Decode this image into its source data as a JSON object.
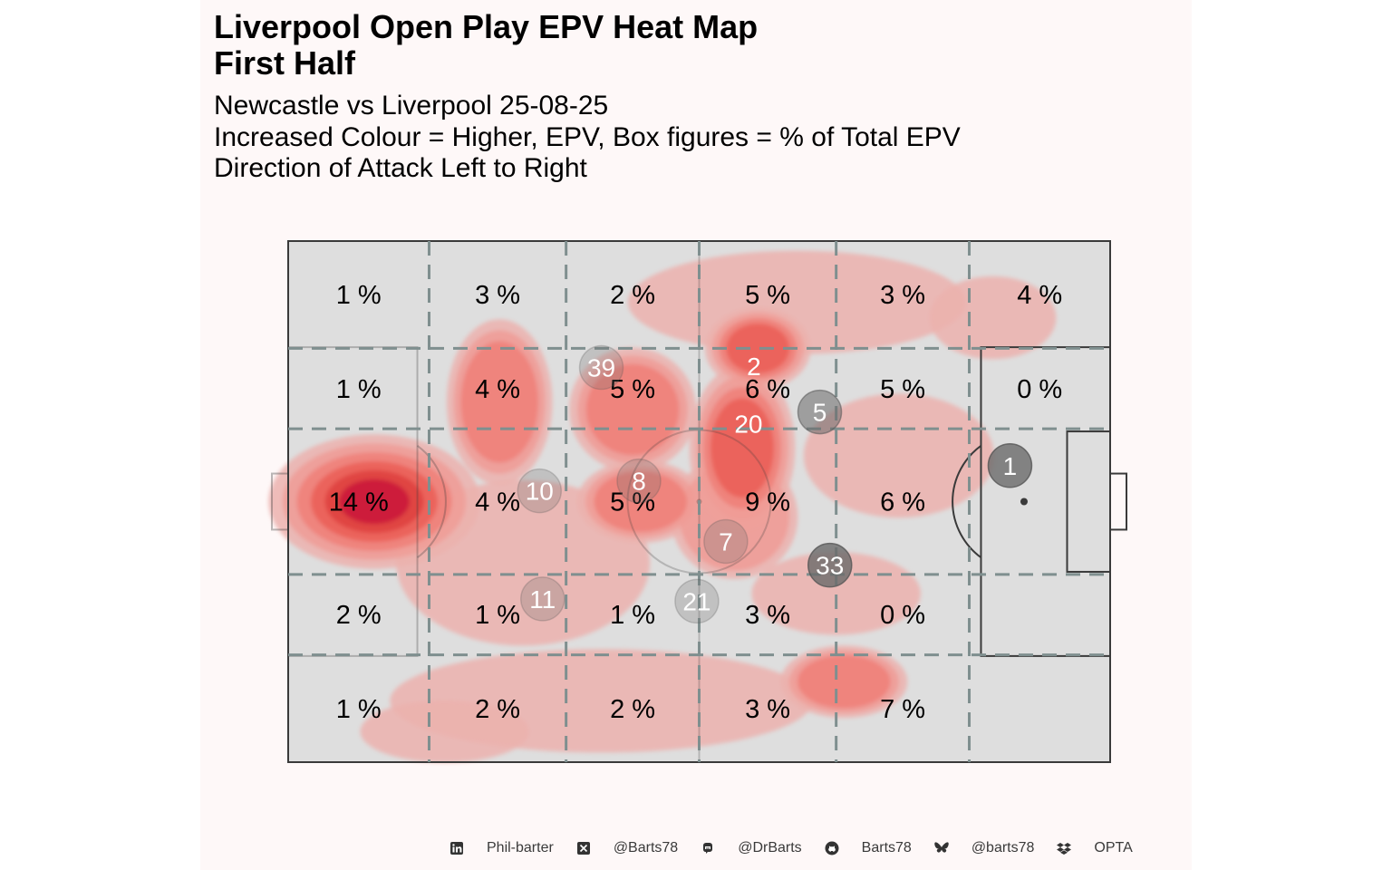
{
  "header": {
    "title_line1": "Liverpool  Open Play EPV Heat Map",
    "title_line2": "First Half",
    "subtitle_line1": "Newcastle vs Liverpool 25-08-25",
    "subtitle_line2": "Increased Colour = Higher, EPV, Box figures = % of Total EPV",
    "subtitle_line3": "Direction of Attack Left to Right"
  },
  "colors": {
    "panel_background": "#fef8f8",
    "pitch_fill": "#dedede",
    "pitch_lines": "#3a3a3a",
    "grid_lines": "#7f8f8f",
    "heat_scale": [
      "#ecb1ae",
      "#f09b95",
      "#ef7d76",
      "#ea5b54",
      "#dd3c3c",
      "#c8143a"
    ],
    "player_marker": "#6a6a6a"
  },
  "chart_data": {
    "type": "heatmap",
    "direction_of_attack": "left-to-right",
    "pitch": {
      "length": 105,
      "width": 68
    },
    "zone_x_edges": [
      0,
      18,
      35.5,
      52.5,
      70,
      87,
      105
    ],
    "zone_y_edges": [
      0,
      14,
      24.5,
      43.5,
      54,
      68
    ],
    "zone_labels": [
      [
        "1 %",
        "3 %",
        "2 %",
        "5 %",
        "3 %",
        "4 %"
      ],
      [
        "1 %",
        "4 %",
        "5 %",
        "6 %",
        "5 %",
        "0 %"
      ],
      [
        "14 %",
        "4 %",
        "5 %",
        "9 %",
        "6 %",
        ""
      ],
      [
        "2 %",
        "1 %",
        "1 %",
        "3 %",
        "0 %",
        ""
      ],
      [
        "1 %",
        "2 %",
        "2 %",
        "3 %",
        "7 %",
        ""
      ]
    ],
    "heat_blobs": [
      {
        "x": 11,
        "y": 34,
        "sx": 10,
        "sy": 6.5,
        "level": 6
      },
      {
        "x": 27,
        "y": 21,
        "sx": 5,
        "sy": 8,
        "level": 3
      },
      {
        "x": 44,
        "y": 22,
        "sx": 6,
        "sy": 6,
        "level": 3
      },
      {
        "x": 45,
        "y": 34,
        "sx": 6,
        "sy": 4,
        "level": 3
      },
      {
        "x": 58,
        "y": 27,
        "sx": 5,
        "sy": 8,
        "level": 4
      },
      {
        "x": 60,
        "y": 14,
        "sx": 5,
        "sy": 4,
        "level": 4
      },
      {
        "x": 57,
        "y": 36,
        "sx": 6,
        "sy": 6,
        "level": 2
      },
      {
        "x": 71,
        "y": 57.5,
        "sx": 6,
        "sy": 3.5,
        "level": 3
      },
      {
        "x": 30,
        "y": 42,
        "sx": 12,
        "sy": 8,
        "level": 1
      },
      {
        "x": 40,
        "y": 60,
        "sx": 20,
        "sy": 5,
        "level": 1
      },
      {
        "x": 20,
        "y": 64,
        "sx": 8,
        "sy": 3,
        "level": 1
      },
      {
        "x": 65,
        "y": 8,
        "sx": 16,
        "sy": 5,
        "level": 1
      },
      {
        "x": 78,
        "y": 28,
        "sx": 9,
        "sy": 6,
        "level": 1
      },
      {
        "x": 90,
        "y": 10,
        "sx": 6,
        "sy": 4,
        "level": 1
      },
      {
        "x": 70,
        "y": 46,
        "sx": 8,
        "sy": 4,
        "level": 1
      }
    ],
    "player_markers": [
      {
        "label": "39",
        "x": 40,
        "y": 16.5,
        "shade": "light"
      },
      {
        "label": "2",
        "x": 59.5,
        "y": 16.3,
        "shade": "none"
      },
      {
        "label": "20",
        "x": 58.8,
        "y": 23.8,
        "shade": "none"
      },
      {
        "label": "5",
        "x": 67.9,
        "y": 22.3,
        "shade": "mid"
      },
      {
        "label": "10",
        "x": 32.1,
        "y": 32.6,
        "shade": "light"
      },
      {
        "label": "8",
        "x": 44.8,
        "y": 31.3,
        "shade": "light"
      },
      {
        "label": "7",
        "x": 55.9,
        "y": 39.2,
        "shade": "light"
      },
      {
        "label": "33",
        "x": 69.2,
        "y": 42.3,
        "shade": "dark"
      },
      {
        "label": "1",
        "x": 92.2,
        "y": 29.3,
        "shade": "dark"
      },
      {
        "label": "11",
        "x": 32.5,
        "y": 46.7,
        "shade": "light"
      },
      {
        "label": "21",
        "x": 52.2,
        "y": 47.0,
        "shade": "light"
      }
    ]
  },
  "footer": {
    "items": [
      {
        "icon": "linkedin-icon",
        "text": "Phil-barter"
      },
      {
        "icon": "x-twitter-icon",
        "text": "@Barts78"
      },
      {
        "icon": "mastodon-icon",
        "text": "@DrBarts"
      },
      {
        "icon": "github-icon",
        "text": "Barts78"
      },
      {
        "icon": "bluesky-icon",
        "text": "@barts78"
      },
      {
        "icon": "dropbox-icon",
        "text": "OPTA"
      }
    ]
  }
}
